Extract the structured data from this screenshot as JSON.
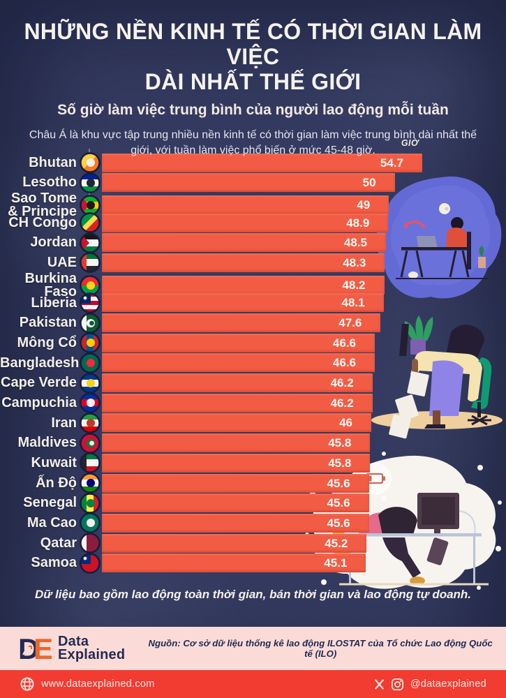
{
  "page": {
    "background_color": "#262d55",
    "accent_color": "#f25c45"
  },
  "header": {
    "title_line1": "NHỮNG NỀN KINH TẾ CÓ THỜI GIAN LÀM VIỆC",
    "title_line2": "DÀI NHẤT THẾ GIỚI",
    "subtitle": "Số giờ làm việc trung bình của người lao động mỗi tuần",
    "description": "Châu Á là khu vực tập trung nhiều nền kinh tế có thời gian làm việc trung bình dài nhất thế giới, với tuần làm việc phổ biến ở mức 45-48 giờ."
  },
  "chart_data": {
    "type": "bar",
    "orientation": "horizontal",
    "title": "Số giờ làm việc trung bình của người lao động mỗi tuần",
    "unit_label": "GIỜ",
    "xlim": [
      0,
      54.7
    ],
    "bar_color": "#f25c45",
    "grid": false,
    "legend": "none",
    "categories": [
      "Bhutan",
      "Lesotho",
      "Sao Tome & Principe",
      "CH Congo",
      "Jordan",
      "UAE",
      "Burkina Faso",
      "Liberia",
      "Pakistan",
      "Mông Cổ",
      "Bangladesh",
      "Cape Verde",
      "Campuchia",
      "Iran",
      "Maldives",
      "Kuwait",
      "Ấn Độ",
      "Senegal",
      "Ma Cao",
      "Qatar",
      "Samoa"
    ],
    "values": [
      54.7,
      50,
      49,
      48.9,
      48.5,
      48.3,
      48.2,
      48.1,
      47.6,
      46.6,
      46.6,
      46.2,
      46.2,
      46,
      45.8,
      45.8,
      45.6,
      45.6,
      45.6,
      45.2,
      45.1
    ],
    "flags": [
      {
        "id": "bhutan",
        "kind": "d",
        "colors": [
          "#ffd043",
          "#ff7a1c"
        ],
        "emblem": "#f4f0ec"
      },
      {
        "id": "lesotho",
        "kind": "h",
        "colors": [
          "#00209f",
          "#f4f4f4",
          "#009543"
        ],
        "emblem": "#23262e"
      },
      {
        "id": "sao-tome-principe",
        "kind": "h",
        "colors": [
          "#12ad2b",
          "#ffce00",
          "#12ad2b"
        ],
        "band": "#d21034",
        "bandShape": "tri",
        "emblem": "#1a1a1a"
      },
      {
        "id": "ch-congo",
        "kind": "d",
        "colors": [
          "#009543",
          "#dc241f"
        ],
        "dband": "#fbde4a"
      },
      {
        "id": "jordan",
        "kind": "h",
        "colors": [
          "#17181c",
          "#f4f4f4",
          "#007a3d"
        ],
        "band": "#ce1126",
        "bandShape": "tri"
      },
      {
        "id": "uae",
        "kind": "h",
        "colors": [
          "#00732f",
          "#f4f4f4",
          "#23262e"
        ],
        "band": "#e03c31",
        "bandShape": "rect"
      },
      {
        "id": "burkina-faso",
        "kind": "h",
        "colors": [
          "#ef2b2d",
          "#009e49"
        ],
        "emblem": "#fcd116"
      },
      {
        "id": "liberia",
        "kind": "h",
        "colors": [
          "#bf0a30",
          "#f4f4f4",
          "#bf0a30",
          "#f4f4f4",
          "#bf0a30"
        ],
        "canton": "#002868"
      },
      {
        "id": "pakistan",
        "kind": "s",
        "colors": [
          "#0e5c2f"
        ],
        "band": "#f4f4f4",
        "bandShape": "rect",
        "emblem": "#f4f4f4",
        "emblem2": "#0e5c2f"
      },
      {
        "id": "mongolia",
        "kind": "v",
        "colors": [
          "#c4272f",
          "#015197",
          "#c4272f"
        ],
        "emblem": "#f9cf02"
      },
      {
        "id": "bangladesh",
        "kind": "s",
        "colors": [
          "#006a4e"
        ],
        "emblem": "#f42a41"
      },
      {
        "id": "cape-verde",
        "kind": "h",
        "colors": [
          "#003893",
          "#f4f4f4",
          "#003893"
        ],
        "emblem": "#f7d116"
      },
      {
        "id": "cambodia",
        "kind": "h",
        "colors": [
          "#032ea1",
          "#e00025",
          "#032ea1"
        ],
        "emblem": "#f4f0ec"
      },
      {
        "id": "iran",
        "kind": "h",
        "colors": [
          "#239f40",
          "#f4f4f4",
          "#da0000"
        ],
        "emblem": "#c0392b"
      },
      {
        "id": "maldives",
        "kind": "s",
        "colors": [
          "#d21034"
        ],
        "emblem": "#007e3a",
        "emblem2": "#f4f4f4"
      },
      {
        "id": "kuwait",
        "kind": "h",
        "colors": [
          "#007a3d",
          "#f4f4f4",
          "#ce1126"
        ],
        "band": "#23262e",
        "bandShape": "rect"
      },
      {
        "id": "india",
        "kind": "h",
        "colors": [
          "#ff9933",
          "#f4f4f4",
          "#138808"
        ],
        "emblem": "#000080"
      },
      {
        "id": "senegal",
        "kind": "v",
        "colors": [
          "#00853f",
          "#fdef42",
          "#e31b23"
        ],
        "emblem": "#00853f"
      },
      {
        "id": "macau",
        "kind": "s",
        "colors": [
          "#00785e"
        ],
        "emblem": "#f4f0ec"
      },
      {
        "id": "qatar",
        "kind": "s",
        "colors": [
          "#8d1b3d"
        ],
        "band": "#f4f4f4",
        "bandShape": "rect"
      },
      {
        "id": "samoa",
        "kind": "s",
        "colors": [
          "#ce1126"
        ],
        "canton": "#002b7f"
      }
    ]
  },
  "footnote": "Dữ liệu bao gồm lao động toàn thời gian, bán thời gian và lao động tự doanh.",
  "footer": {
    "brand_line1": "Data",
    "brand_line2": "Explained",
    "source": "Nguồn: Cơ sở dữ liệu thống kê lao động ILOSTAT của Tổ chức Lao động Quốc tế (ILO)",
    "website": "www.dataexplained.com",
    "social_handle": "@dataexplained"
  },
  "illustrations": [
    "working-late-night-scene",
    "exhausted-worker-slumped-on-desk",
    "burned-out-woman-at-computer"
  ]
}
